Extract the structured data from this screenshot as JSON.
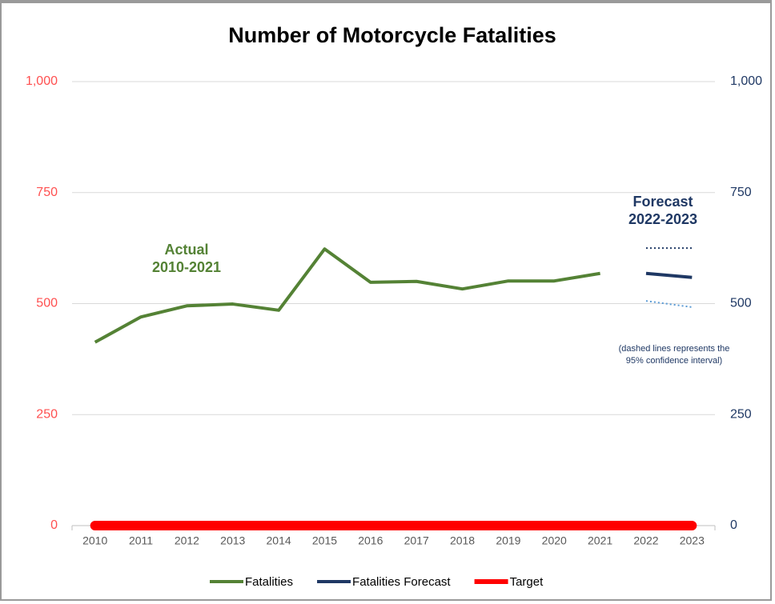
{
  "chart_data": {
    "type": "line",
    "title": "Number of Motorcycle Fatalities",
    "categories": [
      "2010",
      "2011",
      "2012",
      "2013",
      "2014",
      "2015",
      "2016",
      "2017",
      "2018",
      "2019",
      "2020",
      "2021",
      "2022",
      "2023"
    ],
    "series": [
      {
        "name": "Fatalities",
        "color": "#548235",
        "values": [
          413,
          470,
          495,
          499,
          485,
          623,
          548,
          550,
          533,
          551,
          551,
          568,
          null,
          null
        ]
      },
      {
        "name": "Fatalities Forecast",
        "color": "#1f3864",
        "axis": "y2",
        "values": [
          null,
          null,
          null,
          null,
          null,
          null,
          null,
          null,
          null,
          null,
          null,
          null,
          568,
          559
        ]
      },
      {
        "name": "Target",
        "color": "#ff0000",
        "values": [
          0,
          0,
          0,
          0,
          0,
          0,
          0,
          0,
          0,
          0,
          0,
          0,
          0,
          0
        ]
      },
      {
        "color": "#1f3864",
        "axis": "y2",
        "style": "dotted",
        "values": [
          null,
          null,
          null,
          null,
          null,
          null,
          null,
          null,
          null,
          null,
          null,
          null,
          625,
          625
        ]
      },
      {
        "color": "#5b9bd5",
        "axis": "y2",
        "style": "dotted",
        "values": [
          null,
          null,
          null,
          null,
          null,
          null,
          null,
          null,
          null,
          null,
          null,
          null,
          506,
          492
        ]
      }
    ],
    "ylim": [
      0,
      1000
    ],
    "yticks": [
      0,
      250,
      500,
      750,
      {
        "value": 1000,
        "label": "1,000"
      }
    ],
    "y2lim": [
      0,
      1000
    ],
    "y2ticks": [
      0,
      250,
      500,
      750,
      {
        "value": 1000,
        "label": "1,000"
      }
    ],
    "grid": true,
    "legend": "bottom",
    "annotations": [
      {
        "lines": [
          "Actual",
          "2010-2021"
        ],
        "color": "#548235"
      },
      {
        "lines": [
          "Forecast",
          "2022-2023"
        ],
        "color": "#1f3864"
      },
      {
        "lines": [
          "(dashed lines represents the",
          "95% confidence interval)"
        ],
        "color": "#1f3864"
      }
    ]
  }
}
